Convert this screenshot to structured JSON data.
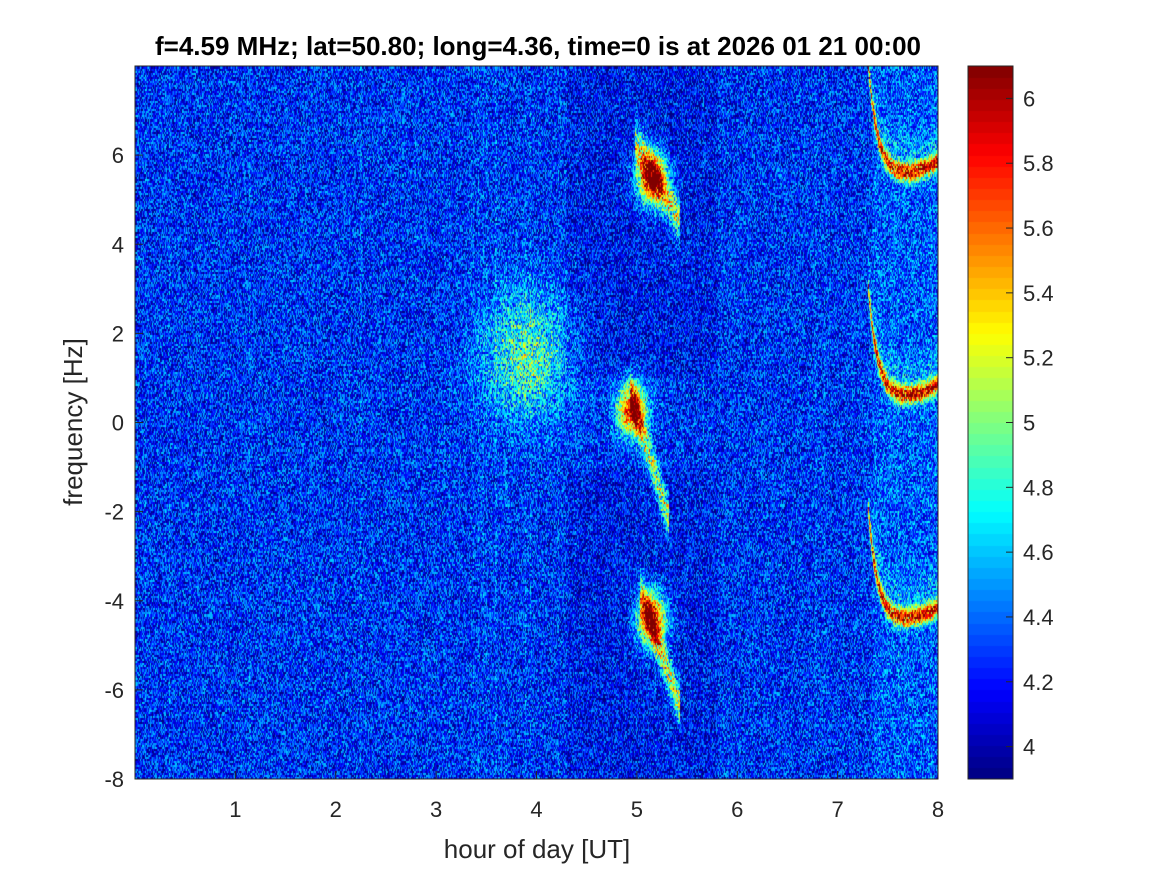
{
  "chart_data": {
    "type": "heatmap",
    "title": "f=4.59 MHz;  lat=50.80; long=4.36, time=0 is at 2026 01 21 00:00",
    "xlabel": "hour of day [UT]",
    "ylabel": "frequency [Hz]",
    "xlim": [
      0,
      8
    ],
    "ylim": [
      -8,
      8
    ],
    "xticks": [
      "1",
      "2",
      "3",
      "4",
      "5",
      "6",
      "7",
      "8"
    ],
    "yticks": [
      "-8",
      "-6",
      "-4",
      "-2",
      "0",
      "2",
      "4",
      "6"
    ],
    "colormap": "jet",
    "clim": [
      3.9,
      6.1
    ],
    "colorbar_ticks": [
      "4",
      "4.2",
      "4.4",
      "4.6",
      "4.8",
      "5",
      "5.2",
      "5.4",
      "5.6",
      "5.8",
      "6"
    ],
    "background_level": 4.25,
    "features": [
      {
        "name": "diffuse-band",
        "hour": [
          3.6,
          4.2
        ],
        "freq": [
          0.5,
          2.5
        ],
        "level": 4.9
      },
      {
        "name": "blob-center",
        "hour": 4.95,
        "freq": 0.3,
        "level": 5.9
      },
      {
        "name": "blob-upper",
        "hour": 5.15,
        "freq": 5.5,
        "level": 5.95
      },
      {
        "name": "blob-lower",
        "hour": 5.15,
        "freq": -4.4,
        "level": 5.9
      },
      {
        "name": "streak-upper",
        "hour": [
          5.0,
          5.4
        ],
        "freq": [
          6.2,
          4.6
        ],
        "level": 5.4
      },
      {
        "name": "streak-center",
        "hour": [
          4.95,
          5.3
        ],
        "freq": [
          0.5,
          -2.0
        ],
        "level": 5.3
      },
      {
        "name": "streak-lower",
        "hour": [
          5.05,
          5.4
        ],
        "freq": [
          -3.9,
          -6.2
        ],
        "level": 5.4
      },
      {
        "name": "trace-upper",
        "hour": [
          7.3,
          8.0
        ],
        "freq_min": 5.6,
        "level": 5.8
      },
      {
        "name": "trace-center",
        "hour": [
          7.3,
          8.0
        ],
        "freq_min": 0.6,
        "level": 5.8
      },
      {
        "name": "trace-lower",
        "hour": [
          7.3,
          8.0
        ],
        "freq_min": -4.4,
        "level": 5.8
      }
    ]
  }
}
